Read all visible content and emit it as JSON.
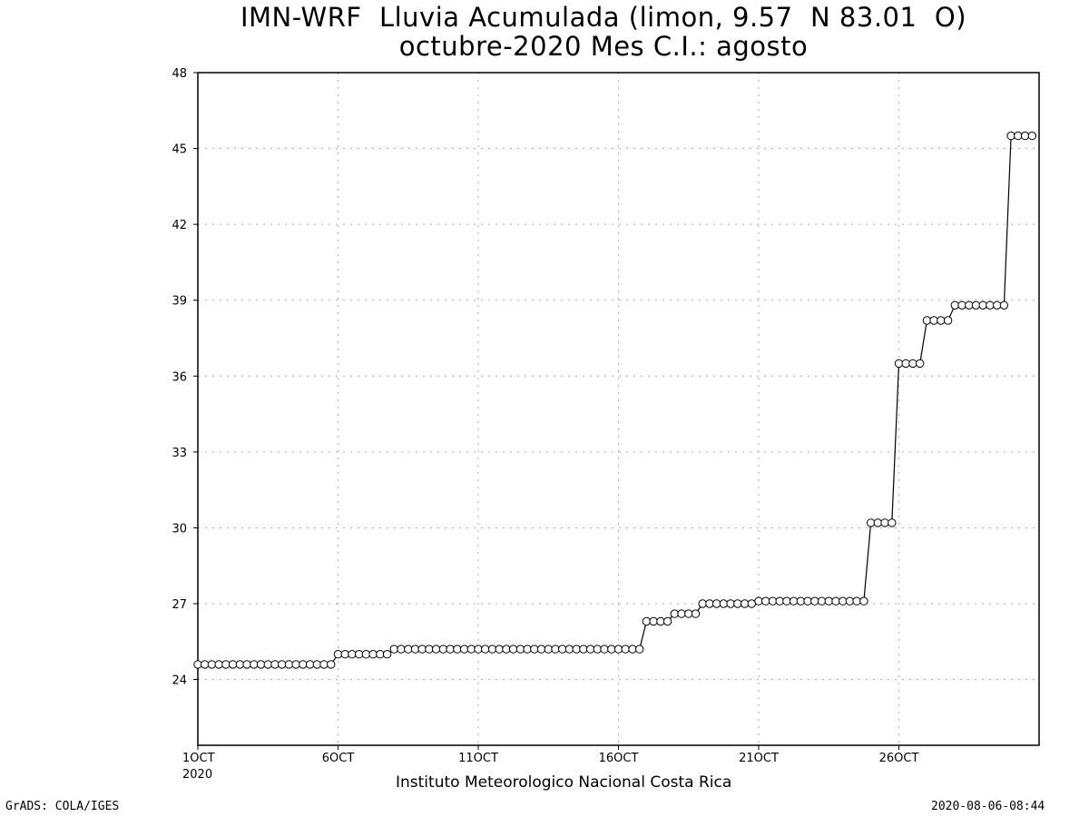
{
  "title_line1": "IMN-WRF  Lluvia Acumulada (limon, 9.57  N 83.01  O)",
  "title_line2": "octubre-2020 Mes C.I.: agosto",
  "credit": "Instituto Meteorologico Nacional Costa Rica",
  "footer_left": "GrADS: COLA/IGES",
  "footer_right": "2020-08-06-08:44",
  "chart_data": {
    "type": "line",
    "title": "IMN-WRF  Lluvia Acumulada (limon, 9.57  N 83.01  O)",
    "subtitle": "octubre-2020 Mes C.I.: agosto",
    "xlabel": "",
    "ylabel": "",
    "ylim": [
      21.4,
      48
    ],
    "yticks": [
      "24",
      "27",
      "30",
      "33",
      "36",
      "39",
      "42",
      "45",
      "48"
    ],
    "xlim": [
      1,
      31
    ],
    "xticks": [
      {
        "day": 1,
        "label": "1OCT",
        "sublabel": "2020"
      },
      {
        "day": 6,
        "label": "6OCT"
      },
      {
        "day": 11,
        "label": "11OCT"
      },
      {
        "day": 16,
        "label": "16OCT"
      },
      {
        "day": 21,
        "label": "21OCT"
      },
      {
        "day": 26,
        "label": "26OCT"
      }
    ],
    "grid": true,
    "marker": "open-circle",
    "series": [
      {
        "steps_per_day": 4,
        "values": [
          24.6,
          24.6,
          24.6,
          24.6,
          24.6,
          24.6,
          24.6,
          24.6,
          24.6,
          24.6,
          24.6,
          24.6,
          24.6,
          24.6,
          24.6,
          24.6,
          24.6,
          24.6,
          24.6,
          24.6,
          25.0,
          25.0,
          25.0,
          25.0,
          25.0,
          25.0,
          25.0,
          25.0,
          25.2,
          25.2,
          25.2,
          25.2,
          25.2,
          25.2,
          25.2,
          25.2,
          25.2,
          25.2,
          25.2,
          25.2,
          25.2,
          25.2,
          25.2,
          25.2,
          25.2,
          25.2,
          25.2,
          25.2,
          25.2,
          25.2,
          25.2,
          25.2,
          25.2,
          25.2,
          25.2,
          25.2,
          25.2,
          25.2,
          25.2,
          25.2,
          25.2,
          25.2,
          25.2,
          25.2,
          26.3,
          26.3,
          26.3,
          26.3,
          26.6,
          26.6,
          26.6,
          26.6,
          27.0,
          27.0,
          27.0,
          27.0,
          27.0,
          27.0,
          27.0,
          27.0,
          27.1,
          27.1,
          27.1,
          27.1,
          27.1,
          27.1,
          27.1,
          27.1,
          27.1,
          27.1,
          27.1,
          27.1,
          27.1,
          27.1,
          27.1,
          27.1,
          30.2,
          30.2,
          30.2,
          30.2,
          36.5,
          36.5,
          36.5,
          36.5,
          38.2,
          38.2,
          38.2,
          38.2,
          38.8,
          38.8,
          38.8,
          38.8,
          38.8,
          38.8,
          38.8,
          38.8,
          45.5,
          45.5,
          45.5,
          45.5
        ]
      }
    ]
  }
}
